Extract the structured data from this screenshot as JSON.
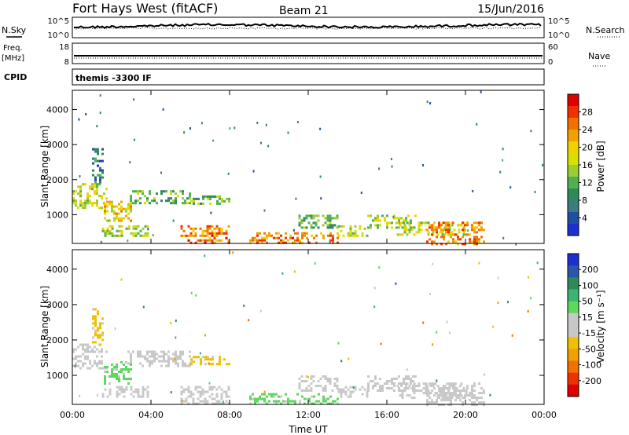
{
  "header": {
    "station": "Fort Hays West (fitACF)",
    "beam": "Beam 21",
    "date": "15/Jun/2016"
  },
  "status_panels": {
    "nsky_label": "N.Sky",
    "nsearch_label": "N.Search",
    "freq_label_1": "Freq.",
    "freq_label_2": "[MHz]",
    "nave_label": "Nave",
    "cpid_label": "CPID",
    "cpid_text": "themis -3300 IF",
    "noise_ticks": [
      "10^5",
      "10^0"
    ],
    "freq_ticks": [
      "18",
      "8"
    ],
    "nave_ticks": [
      "60",
      "0"
    ]
  },
  "power_colorbar": {
    "label": "Power [dB]",
    "ticks": [
      "28",
      "24",
      "20",
      "16",
      "12",
      "8",
      "4"
    ],
    "colors": [
      "#e00000",
      "#f03000",
      "#f07000",
      "#f0a000",
      "#f0d000",
      "#d8e000",
      "#9acd32",
      "#50b050",
      "#2e8b57",
      "#3a7d7d",
      "#1f4fa0",
      "#1c2fd0"
    ]
  },
  "velocity_colorbar": {
    "label": "Velocity [m s⁻¹]",
    "ticks": [
      "200",
      "100",
      "50",
      "15",
      "-15",
      "-50",
      "-100",
      "-200"
    ],
    "colors": [
      "#1c2fd0",
      "#2a55a8",
      "#2e8b57",
      "#3cb371",
      "#5cd85c",
      "#c8c8c8",
      "#c8c8c8",
      "#f0c000",
      "#f0a000",
      "#f07000",
      "#f03000",
      "#e00000"
    ]
  },
  "chart_data": [
    {
      "type": "heatmap",
      "parameter": "power",
      "ylabel": "Slant Range [km]",
      "xlabel": "",
      "ylim": [
        180,
        4550
      ],
      "xlim": [
        0,
        24
      ],
      "y_ticks": [
        1000,
        2000,
        3000,
        4000
      ],
      "x_tick_labels": [
        "00:00",
        "04:00",
        "08:00",
        "12:00",
        "16:00",
        "20:00",
        "00:00"
      ],
      "echo_regions": [
        {
          "t": [
            0.0,
            1.8
          ],
          "r": [
            1200,
            1900
          ],
          "level": 16
        },
        {
          "t": [
            1.0,
            1.5
          ],
          "r": [
            1900,
            2900
          ],
          "level": 8
        },
        {
          "t": [
            1.6,
            3.0
          ],
          "r": [
            800,
            1400
          ],
          "level": 20
        },
        {
          "t": [
            2.8,
            6.0
          ],
          "r": [
            1300,
            1700
          ],
          "level": 12
        },
        {
          "t": [
            6.0,
            8.0
          ],
          "r": [
            1300,
            1550
          ],
          "level": 12
        },
        {
          "t": [
            1.5,
            3.8
          ],
          "r": [
            400,
            700
          ],
          "level": 16
        },
        {
          "t": [
            5.5,
            8.0
          ],
          "r": [
            180,
            700
          ],
          "level": 24
        },
        {
          "t": [
            9.0,
            13.5
          ],
          "r": [
            180,
            500
          ],
          "level": 24
        },
        {
          "t": [
            11.5,
            13.5
          ],
          "r": [
            600,
            1000
          ],
          "level": 12
        },
        {
          "t": [
            13.5,
            15.0
          ],
          "r": [
            400,
            700
          ],
          "level": 16
        },
        {
          "t": [
            15.0,
            17.5
          ],
          "r": [
            600,
            1000
          ],
          "level": 16
        },
        {
          "t": [
            16.5,
            20.0
          ],
          "r": [
            400,
            800
          ],
          "level": 16
        },
        {
          "t": [
            18.0,
            21.0
          ],
          "r": [
            180,
            800
          ],
          "level": 24
        }
      ]
    },
    {
      "type": "heatmap",
      "parameter": "velocity",
      "ylabel": "Slant Range [km]",
      "xlabel": "Time UT",
      "ylim": [
        180,
        4550
      ],
      "xlim": [
        0,
        24
      ],
      "y_ticks": [
        1000,
        2000,
        3000,
        4000
      ],
      "x_tick_labels": [
        "00:00",
        "04:00",
        "08:00",
        "12:00",
        "16:00",
        "20:00",
        "00:00"
      ],
      "echo_regions": [
        {
          "t": [
            0.0,
            1.8
          ],
          "r": [
            1200,
            1900
          ],
          "level": -15
        },
        {
          "t": [
            1.0,
            1.5
          ],
          "r": [
            1900,
            2900
          ],
          "level": -50
        },
        {
          "t": [
            1.6,
            3.0
          ],
          "r": [
            800,
            1400
          ],
          "level": 50
        },
        {
          "t": [
            2.8,
            6.0
          ],
          "r": [
            1300,
            1700
          ],
          "level": 0
        },
        {
          "t": [
            6.0,
            8.0
          ],
          "r": [
            1300,
            1550
          ],
          "level": -50
        },
        {
          "t": [
            1.5,
            3.8
          ],
          "r": [
            400,
            700
          ],
          "level": 0
        },
        {
          "t": [
            5.5,
            8.0
          ],
          "r": [
            180,
            700
          ],
          "level": 0
        },
        {
          "t": [
            9.0,
            13.5
          ],
          "r": [
            180,
            500
          ],
          "level": 50
        },
        {
          "t": [
            11.5,
            13.5
          ],
          "r": [
            600,
            1000
          ],
          "level": 0
        },
        {
          "t": [
            13.5,
            15.0
          ],
          "r": [
            400,
            700
          ],
          "level": 0
        },
        {
          "t": [
            15.0,
            17.5
          ],
          "r": [
            600,
            1000
          ],
          "level": 0
        },
        {
          "t": [
            16.5,
            20.0
          ],
          "r": [
            400,
            800
          ],
          "level": 0
        },
        {
          "t": [
            18.0,
            21.0
          ],
          "r": [
            180,
            800
          ],
          "level": -15
        }
      ]
    }
  ]
}
